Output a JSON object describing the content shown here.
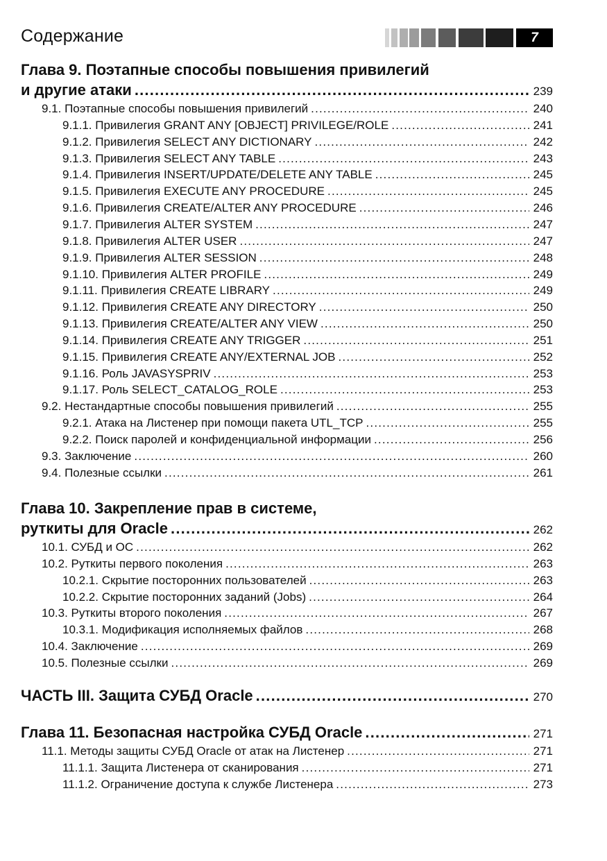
{
  "header": {
    "title": "Содержание",
    "page_number": "7",
    "bar_colors": [
      "#d6d6d6",
      "#c2c2c2",
      "#aeaeae",
      "#9c9c9c",
      "#7c7c7c",
      "#5c5c5c",
      "#3c3c3c",
      "#1e1e1e"
    ]
  },
  "sections": [
    {
      "title_lines": [
        "Глава 9. Поэтапные способы повышения привилегий",
        "и другие атаки"
      ],
      "page": "239",
      "entries": [
        {
          "level": 1,
          "text": "9.1. Поэтапные способы повышения привилегий",
          "page": "240"
        },
        {
          "level": 2,
          "text": "9.1.1. Привилегия GRANT ANY [OBJECT] PRIVILEGE/ROLE",
          "page": "241"
        },
        {
          "level": 2,
          "text": "9.1.2. Привилегия SELECT ANY DICTIONARY",
          "page": "242"
        },
        {
          "level": 2,
          "text": "9.1.3. Привилегия SELECT ANY TABLE",
          "page": "243"
        },
        {
          "level": 2,
          "text": "9.1.4. Привилегия INSERT/UPDATE/DELETE ANY TABLE",
          "page": "245"
        },
        {
          "level": 2,
          "text": "9.1.5. Привилегия EXECUTE ANY PROCEDURE",
          "page": "245"
        },
        {
          "level": 2,
          "text": "9.1.6. Привилегия CREATE/ALTER ANY PROCEDURE",
          "page": "246"
        },
        {
          "level": 2,
          "text": "9.1.7. Привилегия ALTER SYSTEM",
          "page": "247"
        },
        {
          "level": 2,
          "text": "9.1.8. Привилегия ALTER USER",
          "page": "247"
        },
        {
          "level": 2,
          "text": "9.1.9. Привилегия ALTER SESSION",
          "page": "248"
        },
        {
          "level": 2,
          "text": "9.1.10. Привилегия ALTER PROFILE",
          "page": "249"
        },
        {
          "level": 2,
          "text": "9.1.11. Привилегия CREATE LIBRARY",
          "page": "249"
        },
        {
          "level": 2,
          "text": "9.1.12. Привилегия CREATE ANY DIRECTORY",
          "page": "250"
        },
        {
          "level": 2,
          "text": "9.1.13. Привилегия CREATE/ALTER ANY VIEW",
          "page": "250"
        },
        {
          "level": 2,
          "text": "9.1.14. Привилегия CREATE ANY TRIGGER",
          "page": "251"
        },
        {
          "level": 2,
          "text": "9.1.15. Привилегия CREATE ANY/EXTERNAL JOB",
          "page": "252"
        },
        {
          "level": 2,
          "text": "9.1.16. Роль JAVASYSPRIV",
          "page": "253"
        },
        {
          "level": 2,
          "text": "9.1.17. Роль SELECT_CATALOG_ROLE",
          "page": "253"
        },
        {
          "level": 1,
          "text": "9.2. Нестандартные способы повышения привилегий",
          "page": "255"
        },
        {
          "level": 2,
          "text": "9.2.1. Атака на Листенер при помощи пакета UTL_TCP",
          "page": "255"
        },
        {
          "level": 2,
          "text": "9.2.2. Поиск паролей и конфиденциальной информации",
          "page": "256"
        },
        {
          "level": 1,
          "text": "9.3. Заключение",
          "page": "260"
        },
        {
          "level": 1,
          "text": "9.4. Полезные ссылки",
          "page": "261"
        }
      ]
    },
    {
      "title_lines": [
        "Глава 10. Закрепление прав в системе,",
        "руткиты для Oracle"
      ],
      "page": "262",
      "entries": [
        {
          "level": 1,
          "text": "10.1. СУБД и ОС",
          "page": "262"
        },
        {
          "level": 1,
          "text": "10.2. Руткиты первого поколения",
          "page": "263"
        },
        {
          "level": 2,
          "text": "10.2.1. Скрытие посторонних пользователей",
          "page": "263"
        },
        {
          "level": 2,
          "text": "10.2.2. Скрытие посторонних заданий (Jobs)",
          "page": "264"
        },
        {
          "level": 1,
          "text": "10.3. Руткиты второго поколения",
          "page": "267"
        },
        {
          "level": 2,
          "text": "10.3.1. Модификация исполняемых файлов",
          "page": "268"
        },
        {
          "level": 1,
          "text": "10.4. Заключение",
          "page": "269"
        },
        {
          "level": 1,
          "text": "10.5. Полезные ссылки",
          "page": "269"
        }
      ]
    },
    {
      "title_lines": [
        "ЧАСТЬ III. Защита СУБД Oracle"
      ],
      "page": "270",
      "entries": []
    },
    {
      "title_lines": [
        "Глава 11. Безопасная настройка СУБД Oracle"
      ],
      "page": "271",
      "entries": [
        {
          "level": 1,
          "text": "11.1. Методы защиты СУБД Oracle от атак на Листенер",
          "page": "271"
        },
        {
          "level": 2,
          "text": "11.1.1. Защита Листенера от сканирования",
          "page": "271"
        },
        {
          "level": 2,
          "text": "11.1.2. Ограничение доступа к службе Листенера",
          "page": "273"
        }
      ]
    }
  ]
}
